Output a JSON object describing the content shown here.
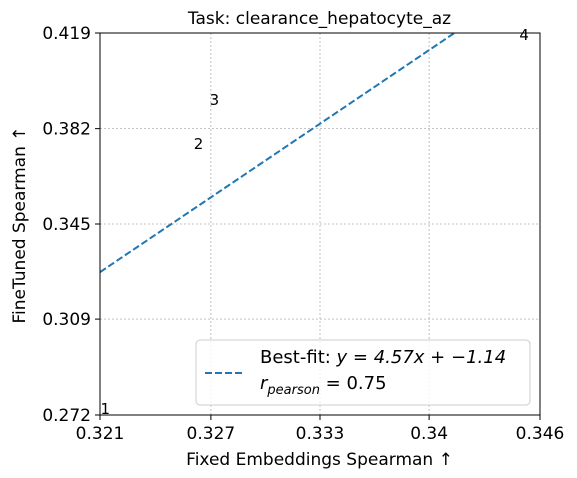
{
  "chart_data": {
    "type": "scatter",
    "title": "Task: clearance_hepatocyte_az",
    "xlabel": "Fixed Embeddings Spearman ↑",
    "ylabel": "FineTuned Spearman ↑",
    "xlim": [
      0.321,
      0.346
    ],
    "ylim": [
      0.272,
      0.419
    ],
    "xticks": [
      {
        "value": 0.321,
        "label": "0.321"
      },
      {
        "value": 0.3273,
        "label": "0.327"
      },
      {
        "value": 0.3335,
        "label": "0.333"
      },
      {
        "value": 0.3397,
        "label": "0.34"
      },
      {
        "value": 0.346,
        "label": "0.346"
      }
    ],
    "yticks": [
      {
        "value": 0.272,
        "label": "0.272"
      },
      {
        "value": 0.3089,
        "label": "0.309"
      },
      {
        "value": 0.3455,
        "label": "0.345"
      },
      {
        "value": 0.3822,
        "label": "0.382"
      },
      {
        "value": 0.419,
        "label": "0.419"
      }
    ],
    "grid": true,
    "points": [
      {
        "label": "1",
        "x": 0.3213,
        "y": 0.2724
      },
      {
        "label": "2",
        "x": 0.3266,
        "y": 0.3743
      },
      {
        "label": "3",
        "x": 0.3275,
        "y": 0.3912
      },
      {
        "label": "4",
        "x": 0.3451,
        "y": 0.4164
      }
    ],
    "fit": {
      "slope": 4.57,
      "intercept": -1.14,
      "label": "Best-fit: $y = 4.57x + -1.14$",
      "label_main": "Best-fit: ",
      "label_eq": "y = 4.57x + −1.14",
      "r_label_sym": "r",
      "r_label_sub": "pearson",
      "r_label_val": " = 0.75",
      "color": "#1f77b4",
      "style": "dashed"
    },
    "legend_position": "lower-right"
  }
}
